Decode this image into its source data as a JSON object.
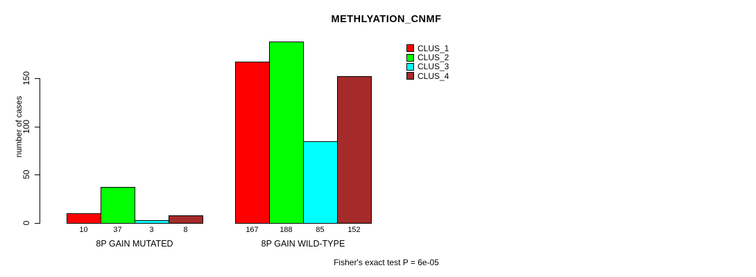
{
  "title": "METHLYATION_CNMF",
  "ylabel": "number of cases",
  "caption": "Fisher's exact test P = 6e-05",
  "chart_data": {
    "type": "bar",
    "title": "METHLYATION_CNMF",
    "xlabel": "",
    "ylabel": "number of cases",
    "categories": [
      "8P GAIN MUTATED",
      "8P GAIN WILD-TYPE"
    ],
    "series": [
      {
        "name": "CLUS_1",
        "color": "#FF0000",
        "values": [
          10,
          167
        ]
      },
      {
        "name": "CLUS_2",
        "color": "#00FF00",
        "values": [
          37,
          188
        ]
      },
      {
        "name": "CLUS_3",
        "color": "#00FFFF",
        "values": [
          3,
          85
        ]
      },
      {
        "name": "CLUS_4",
        "color": "#A52A2A",
        "values": [
          8,
          152
        ]
      }
    ],
    "bar_value_labels_shown": true,
    "yticks": [
      0,
      50,
      100,
      150
    ],
    "ylim": [
      0,
      150
    ],
    "grid": false,
    "legend_position": "top-right",
    "legend_entries": [
      "CLUS_1",
      "CLUS_2",
      "CLUS_3",
      "CLUS_4"
    ],
    "annotation": "Fisher's exact test P = 6e-05"
  }
}
